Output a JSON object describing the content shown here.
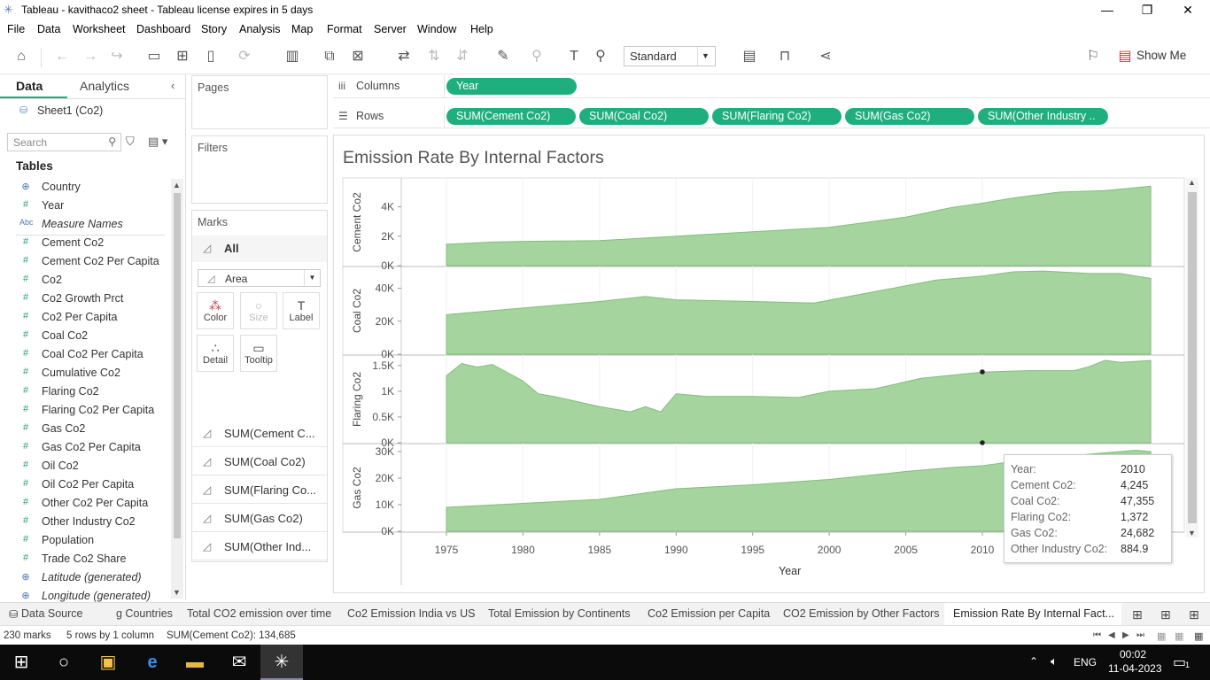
{
  "window": {
    "title": "Tableau - kavithaco2 sheet - Tableau license expires in 5 days"
  },
  "menu": [
    "File",
    "Data",
    "Worksheet",
    "Dashboard",
    "Story",
    "Analysis",
    "Map",
    "Format",
    "Server",
    "Window",
    "Help"
  ],
  "toolbar": {
    "fit": "Standard",
    "show_me": "Show Me"
  },
  "datapane": {
    "tab_data": "Data",
    "tab_analytics": "Analytics",
    "source": "Sheet1 (Co2)",
    "search_placeholder": "Search",
    "tables_header": "Tables",
    "fields": [
      {
        "name": "Country",
        "icon": "globe-icon",
        "glyph": "⊕",
        "italic": false
      },
      {
        "name": "Year",
        "icon": "hash-icon",
        "glyph": "#",
        "italic": false
      },
      {
        "name": "Measure Names",
        "icon": "abc-icon",
        "glyph": "Abc",
        "italic": true
      },
      {
        "name": "Cement Co2",
        "icon": "hash-icon",
        "glyph": "#",
        "italic": false
      },
      {
        "name": "Cement Co2 Per Capita",
        "icon": "hash-icon",
        "glyph": "#",
        "italic": false
      },
      {
        "name": "Co2",
        "icon": "hash-icon",
        "glyph": "#",
        "italic": false
      },
      {
        "name": "Co2 Growth Prct",
        "icon": "hash-icon",
        "glyph": "#",
        "italic": false
      },
      {
        "name": "Co2 Per Capita",
        "icon": "hash-icon",
        "glyph": "#",
        "italic": false
      },
      {
        "name": "Coal Co2",
        "icon": "hash-icon",
        "glyph": "#",
        "italic": false
      },
      {
        "name": "Coal Co2 Per Capita",
        "icon": "hash-icon",
        "glyph": "#",
        "italic": false
      },
      {
        "name": "Cumulative Co2",
        "icon": "hash-icon",
        "glyph": "#",
        "italic": false
      },
      {
        "name": "Flaring Co2",
        "icon": "hash-icon",
        "glyph": "#",
        "italic": false
      },
      {
        "name": "Flaring Co2 Per Capita",
        "icon": "hash-icon",
        "glyph": "#",
        "italic": false
      },
      {
        "name": "Gas Co2",
        "icon": "hash-icon",
        "glyph": "#",
        "italic": false
      },
      {
        "name": "Gas Co2 Per Capita",
        "icon": "hash-icon",
        "glyph": "#",
        "italic": false
      },
      {
        "name": "Oil Co2",
        "icon": "hash-icon",
        "glyph": "#",
        "italic": false
      },
      {
        "name": "Oil Co2 Per Capita",
        "icon": "hash-icon",
        "glyph": "#",
        "italic": false
      },
      {
        "name": "Other Co2 Per Capita",
        "icon": "hash-icon",
        "glyph": "#",
        "italic": false
      },
      {
        "name": "Other Industry Co2",
        "icon": "hash-icon",
        "glyph": "#",
        "italic": false
      },
      {
        "name": "Population",
        "icon": "hash-icon",
        "glyph": "#",
        "italic": false
      },
      {
        "name": "Trade Co2 Share",
        "icon": "hash-icon",
        "glyph": "#",
        "italic": false
      },
      {
        "name": "Latitude (generated)",
        "icon": "globe-icon",
        "glyph": "⊕",
        "italic": true
      },
      {
        "name": "Longitude (generated)",
        "icon": "globe-icon",
        "glyph": "⊕",
        "italic": true
      }
    ]
  },
  "cards": {
    "pages": "Pages",
    "filters": "Filters",
    "marks": "Marks",
    "marks_all": "All",
    "mark_type": "Area",
    "buttons": {
      "color": "Color",
      "size": "Size",
      "label": "Label",
      "detail": "Detail",
      "tooltip": "Tooltip"
    },
    "measure_rows": [
      "SUM(Cement C...",
      "SUM(Coal Co2)",
      "SUM(Flaring Co...",
      "SUM(Gas Co2)",
      "SUM(Other Ind..."
    ]
  },
  "shelves": {
    "columns_label": "Columns",
    "rows_label": "Rows",
    "columns": [
      "Year"
    ],
    "rows": [
      "SUM(Cement Co2)",
      "SUM(Coal Co2)",
      "SUM(Flaring Co2)",
      "SUM(Gas Co2)",
      "SUM(Other Industry .."
    ]
  },
  "viz": {
    "title": "Emission Rate By Internal Factors",
    "xlabel": "Year"
  },
  "tooltip": {
    "rows": [
      {
        "k": "Year:",
        "v": "2010"
      },
      {
        "k": "Cement Co2:",
        "v": "4,245"
      },
      {
        "k": "Coal Co2:",
        "v": "47,355"
      },
      {
        "k": "Flaring Co2:",
        "v": "1,372"
      },
      {
        "k": "Gas Co2:",
        "v": "24,682"
      },
      {
        "k": "Other Industry Co2:",
        "v": "884.9"
      }
    ]
  },
  "tabs": {
    "datasource": "Data Source",
    "sheets": [
      "g Countries",
      "Total CO2 emission over time",
      "Co2 Emission India vs US",
      "Total Emission by Continents",
      "Co2 Emission per Capita",
      "CO2 Emission by Other Factors",
      "Emission Rate By Internal Fact..."
    ]
  },
  "status": {
    "marks": "230 marks",
    "shape": "5 rows by 1 column",
    "sum": "SUM(Cement Co2): 134,685"
  },
  "taskbar": {
    "lang": "ENG",
    "time": "00:02",
    "date": "11-04-2023",
    "notif": "1"
  },
  "colors": {
    "accent": "#1fae7e",
    "area_fill": "#a6d49f",
    "area_line": "#7fbf79"
  },
  "chart_data": {
    "type": "area",
    "title": "Emission Rate By Internal Factors",
    "xlabel": "Year",
    "x_ticks": [
      1975,
      1980,
      1985,
      1990,
      1995,
      2000,
      2005,
      2010
    ],
    "xlim": [
      1960,
      2022
    ],
    "panels": [
      {
        "name": "Cement Co2",
        "ylim": [
          0,
          5600
        ],
        "ticks": [
          0,
          2000,
          4000
        ],
        "tick_labels": [
          "0K",
          "2K",
          "4K"
        ],
        "years": [
          1975,
          1978,
          1980,
          1985,
          1990,
          1995,
          2000,
          2005,
          2008,
          2010,
          2012,
          2015,
          2018,
          2021
        ],
        "values": [
          1450,
          1600,
          1650,
          1700,
          2000,
          2300,
          2600,
          3300,
          3950,
          4245,
          4600,
          5000,
          5100,
          5400
        ]
      },
      {
        "name": "Coal Co2",
        "ylim": [
          0,
          50000
        ],
        "ticks": [
          0,
          20000,
          40000
        ],
        "tick_labels": [
          "0K",
          "20K",
          "40K"
        ],
        "years": [
          1975,
          1980,
          1985,
          1988,
          1990,
          1995,
          1999,
          2003,
          2007,
          2010,
          2012,
          2014,
          2017,
          2019,
          2021
        ],
        "values": [
          24000,
          28000,
          32000,
          35000,
          33000,
          32000,
          31000,
          38000,
          45000,
          47355,
          50000,
          50500,
          49000,
          49000,
          46000
        ]
      },
      {
        "name": "Flaring Co2",
        "ylim": [
          0,
          1600
        ],
        "ticks": [
          0,
          500,
          1000,
          1500
        ],
        "tick_labels": [
          "0K",
          "0.5K",
          "1K",
          "1.5K"
        ],
        "years": [
          1975,
          1976,
          1977,
          1978,
          1980,
          1981,
          1982,
          1985,
          1987,
          1988,
          1989,
          1990,
          1992,
          1995,
          1998,
          2000,
          2003,
          2006,
          2010,
          2013,
          2016,
          2017,
          2018,
          2019,
          2021
        ],
        "values": [
          1300,
          1540,
          1470,
          1520,
          1200,
          950,
          900,
          700,
          600,
          700,
          600,
          950,
          900,
          900,
          880,
          1000,
          1050,
          1250,
          1372,
          1400,
          1400,
          1480,
          1600,
          1560,
          1600
        ]
      },
      {
        "name": "Gas Co2",
        "ylim": [
          0,
          31000
        ],
        "ticks": [
          0,
          10000,
          20000,
          30000
        ],
        "tick_labels": [
          "0K",
          "10K",
          "20K",
          "30K"
        ],
        "years": [
          1975,
          1980,
          1985,
          1990,
          1995,
          2000,
          2005,
          2008,
          2010,
          2013,
          2016,
          2018,
          2020,
          2021
        ],
        "values": [
          9000,
          10500,
          12000,
          16000,
          17500,
          19500,
          22500,
          24000,
          24682,
          27000,
          28500,
          29500,
          30500,
          30000
        ]
      }
    ]
  }
}
